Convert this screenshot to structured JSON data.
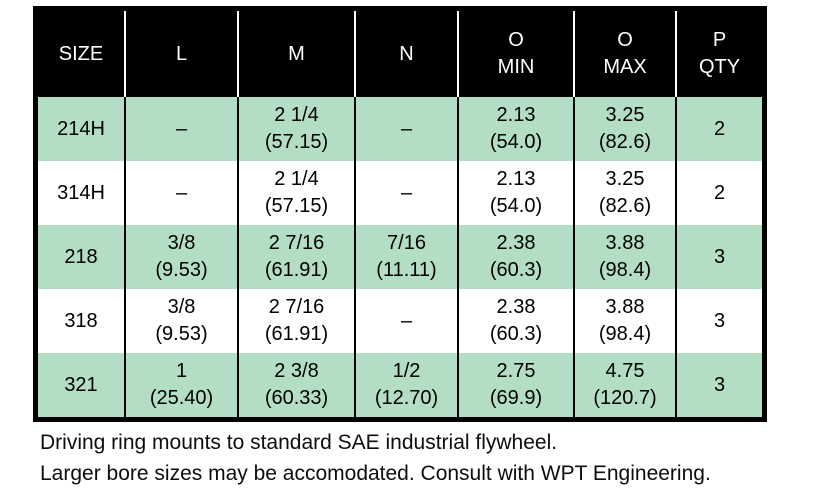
{
  "table": {
    "columns": [
      {
        "key": "size",
        "lines": [
          "SIZE"
        ]
      },
      {
        "key": "l",
        "lines": [
          "L"
        ]
      },
      {
        "key": "m",
        "lines": [
          "M"
        ]
      },
      {
        "key": "n",
        "lines": [
          "N"
        ]
      },
      {
        "key": "o-min",
        "lines": [
          "O",
          "MIN"
        ]
      },
      {
        "key": "o-max",
        "lines": [
          "O",
          "MAX"
        ]
      },
      {
        "key": "p-qty",
        "lines": [
          "P",
          "QTY"
        ]
      }
    ],
    "rows": [
      [
        [
          "214H"
        ],
        [
          "–"
        ],
        [
          "2 1/4",
          "(57.15)"
        ],
        [
          "–"
        ],
        [
          "2.13",
          "(54.0)"
        ],
        [
          "3.25",
          "(82.6)"
        ],
        [
          "2"
        ]
      ],
      [
        [
          "314H"
        ],
        [
          "–"
        ],
        [
          "2 1/4",
          "(57.15)"
        ],
        [
          "–"
        ],
        [
          "2.13",
          "(54.0)"
        ],
        [
          "3.25",
          "(82.6)"
        ],
        [
          "2"
        ]
      ],
      [
        [
          "218"
        ],
        [
          "3/8",
          "(9.53)"
        ],
        [
          "2 7/16",
          "(61.91)"
        ],
        [
          "7/16",
          "(11.11)"
        ],
        [
          "2.38",
          "(60.3)"
        ],
        [
          "3.88",
          "(98.4)"
        ],
        [
          "3"
        ]
      ],
      [
        [
          "318"
        ],
        [
          "3/8",
          "(9.53)"
        ],
        [
          "2 7/16",
          "(61.91)"
        ],
        [
          "–"
        ],
        [
          "2.38",
          "(60.3)"
        ],
        [
          "3.88",
          "(98.4)"
        ],
        [
          "3"
        ]
      ],
      [
        [
          "321"
        ],
        [
          "1",
          "(25.40)"
        ],
        [
          "2 3/8",
          "(60.33)"
        ],
        [
          "1/2",
          "(12.70)"
        ],
        [
          "2.75",
          "(69.9)"
        ],
        [
          "4.75",
          "(120.7)"
        ],
        [
          "3"
        ]
      ]
    ]
  },
  "notes": {
    "line1": "Driving ring mounts to standard SAE industrial flywheel.",
    "line2": "Larger bore sizes may be accomodated. Consult with WPT Engineering."
  },
  "colors": {
    "header_bg": "#000000",
    "header_text": "#ffffff",
    "row_green": "#b4dec4",
    "row_white": "#ffffff",
    "border": "#000000"
  }
}
